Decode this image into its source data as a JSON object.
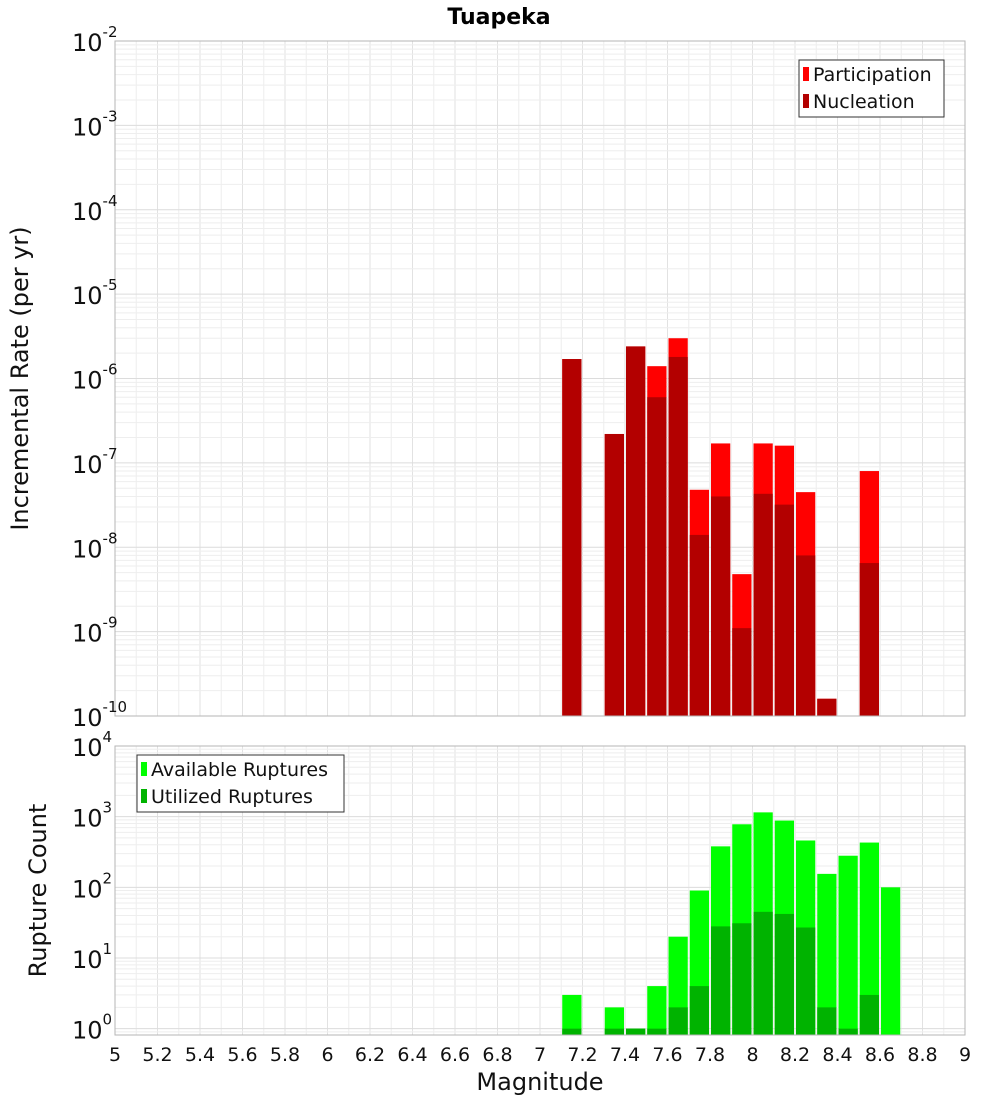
{
  "chart_data": {
    "title": "Tuapeka",
    "x_label": "Magnitude",
    "x_range": [
      5,
      9
    ],
    "x_ticks": [
      "5",
      "5.2",
      "5.4",
      "5.6",
      "5.8",
      "6",
      "6.2",
      "6.4",
      "6.6",
      "6.8",
      "7",
      "7.2",
      "7.4",
      "7.6",
      "7.8",
      "8",
      "8.2",
      "8.4",
      "8.6",
      "8.8",
      "9"
    ],
    "bin_width": 0.1,
    "panels": [
      {
        "type": "bar",
        "scale": "log",
        "y_label": "Incremental Rate (per yr)",
        "y_range_exp": [
          -10,
          -2
        ],
        "y_tick_exps": [
          "-10",
          "-9",
          "-8",
          "-7",
          "-6",
          "-5",
          "-4",
          "-3",
          "-2"
        ],
        "legend_position": "top-right",
        "grid": true,
        "series": [
          {
            "name": "Participation",
            "color": "#ff0000",
            "x": [
              7.15,
              7.35,
              7.45,
              7.55,
              7.65,
              7.75,
              7.85,
              7.95,
              8.05,
              8.15,
              8.25,
              8.35,
              8.55
            ],
            "values": [
              1.7e-06,
              2.2e-07,
              2.4e-06,
              1.4e-06,
              3e-06,
              4.8e-08,
              1.7e-07,
              4.8e-09,
              1.7e-07,
              1.6e-07,
              4.5e-08,
              1.6e-10,
              8e-08
            ]
          },
          {
            "name": "Nucleation",
            "color": "#b30000",
            "x": [
              7.15,
              7.35,
              7.45,
              7.55,
              7.65,
              7.75,
              7.85,
              7.95,
              8.05,
              8.15,
              8.25,
              8.35,
              8.55
            ],
            "values": [
              1.7e-06,
              2.2e-07,
              2.4e-06,
              6e-07,
              1.8e-06,
              1.4e-08,
              4e-08,
              1.1e-09,
              4.3e-08,
              3.2e-08,
              8e-09,
              1.6e-10,
              6.5e-09
            ]
          }
        ]
      },
      {
        "type": "bar",
        "scale": "log",
        "y_label": "Rupture Count",
        "y_range_exp": [
          -0.09,
          4
        ],
        "y_tick_exps": [
          "0",
          "1",
          "2",
          "3",
          "4"
        ],
        "legend_position": "top-left",
        "grid": true,
        "series": [
          {
            "name": "Available Ruptures",
            "color": "#00ff00",
            "x": [
              7.15,
              7.35,
              7.45,
              7.55,
              7.65,
              7.75,
              7.85,
              7.95,
              8.05,
              8.15,
              8.25,
              8.35,
              8.45,
              8.55,
              8.65
            ],
            "values": [
              3,
              2,
              1,
              4,
              20,
              90,
              380,
              780,
              1150,
              880,
              460,
              155,
              280,
              430,
              100
            ]
          },
          {
            "name": "Utilized Ruptures",
            "color": "#00b300",
            "x": [
              7.15,
              7.35,
              7.45,
              7.55,
              7.65,
              7.75,
              7.85,
              7.95,
              8.05,
              8.15,
              8.25,
              8.35,
              8.45,
              8.55
            ],
            "values": [
              1,
              1,
              1,
              1,
              2,
              4,
              28,
              31,
              45,
              42,
              27,
              2,
              1,
              3
            ]
          }
        ]
      }
    ]
  }
}
